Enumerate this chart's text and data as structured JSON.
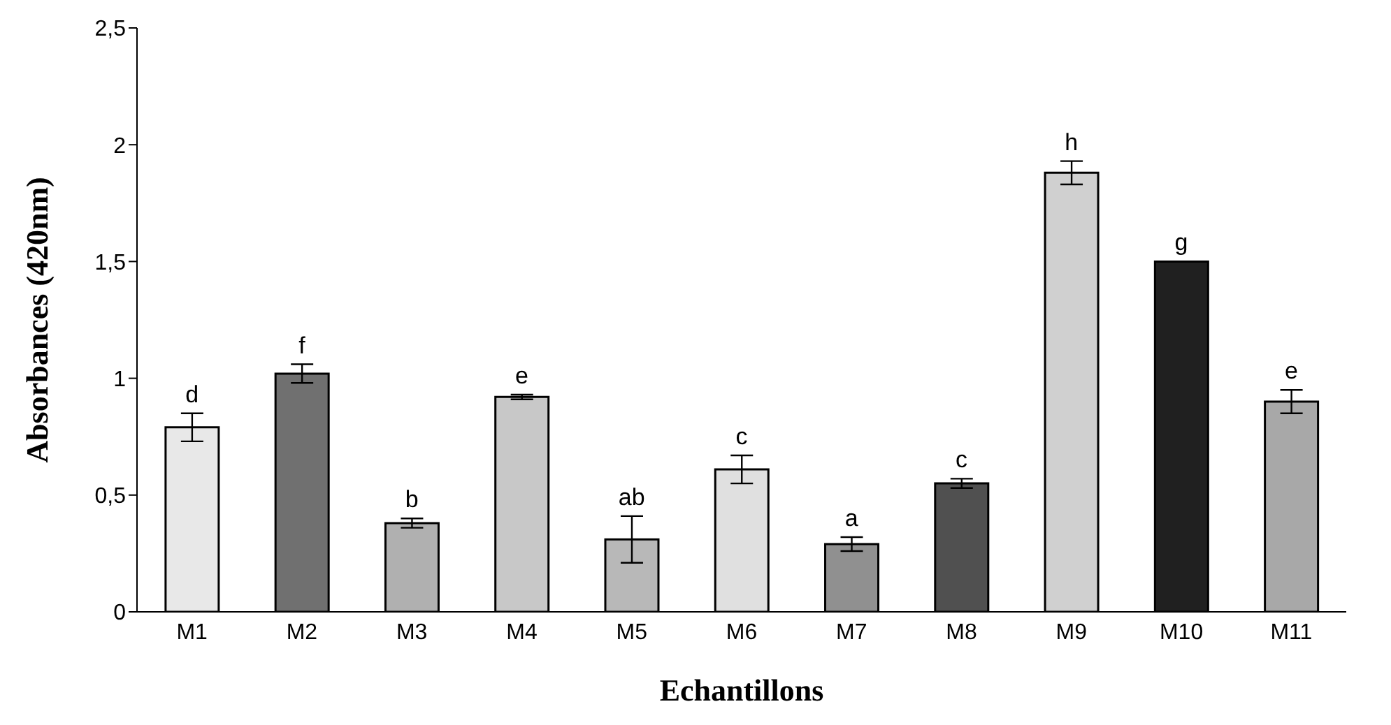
{
  "chart_data": {
    "type": "bar",
    "xlabel": "Echantillons",
    "ylabel": "Absorbances (420nm)",
    "categories": [
      "M1",
      "M2",
      "M3",
      "M4",
      "M5",
      "M6",
      "M7",
      "M8",
      "M9",
      "M10",
      "M11"
    ],
    "values": [
      0.79,
      1.02,
      0.38,
      0.92,
      0.31,
      0.61,
      0.29,
      0.55,
      1.88,
      1.5,
      0.9
    ],
    "errors": [
      0.06,
      0.04,
      0.02,
      0.01,
      0.1,
      0.06,
      0.03,
      0.02,
      0.05,
      null,
      0.05
    ],
    "colors": [
      "#e8e8e8",
      "#707070",
      "#b0b0b0",
      "#c8c8c8",
      "#b8b8b8",
      "#e0e0e0",
      "#909090",
      "#505050",
      "#d0d0d0",
      "#202020",
      "#a8a8a8"
    ],
    "ylim": [
      0,
      2.5
    ],
    "yticks": [
      0,
      {
        "value": 0.5,
        "label": "0,5"
      },
      1,
      {
        "value": 1.5,
        "label": "1,5"
      },
      2,
      {
        "value": 2.5,
        "label": "2,5"
      }
    ],
    "grid": false,
    "legend": false,
    "annotations": [
      {
        "text": "d",
        "x": "M1",
        "y": 0.85
      },
      {
        "text": "f",
        "x": "M2",
        "y": 1.06
      },
      {
        "text": "b",
        "x": "M3",
        "y": 0.4
      },
      {
        "text": "e",
        "x": "M4",
        "y": 0.93
      },
      {
        "text": "ab",
        "x": "M5",
        "y": 0.41
      },
      {
        "text": "c",
        "x": "M6",
        "y": 0.67
      },
      {
        "text": "a",
        "x": "M7",
        "y": 0.32
      },
      {
        "text": "c",
        "x": "M8",
        "y": 0.57
      },
      {
        "text": "h",
        "x": "M9",
        "y": 1.93
      },
      {
        "text": "g",
        "x": "M10",
        "y": 1.5
      },
      {
        "text": "e",
        "x": "M11",
        "y": 0.95
      }
    ]
  }
}
